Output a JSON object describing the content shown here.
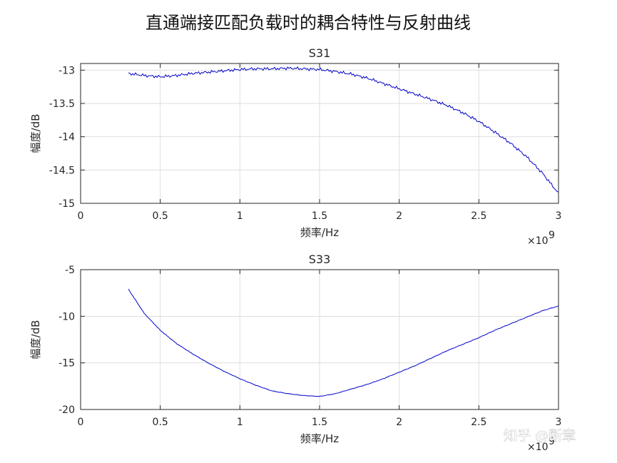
{
  "figure": {
    "suptitle": "直通端接匹配负载时的耦合特性与反射曲线",
    "watermark": "知乎 @断章"
  },
  "chart_data": [
    {
      "type": "line",
      "title": "S31",
      "xlabel": "频率/Hz",
      "ylabel": "幅度/dB",
      "x_exponent_label": "×10",
      "x_exponent": "9",
      "xlim": [
        0,
        3000000000.0
      ],
      "ylim": [
        -15,
        -12.9
      ],
      "x_ticks": [
        0,
        500000000.0,
        1000000000.0,
        1500000000.0,
        2000000000.0,
        2500000000.0,
        3000000000.0
      ],
      "x_tick_labels": [
        "0",
        "0.5",
        "1",
        "1.5",
        "2",
        "2.5",
        "3"
      ],
      "y_ticks": [
        -13,
        -13.5,
        -14,
        -14.5,
        -15
      ],
      "y_tick_labels": [
        "-13",
        "-13.5",
        "-14",
        "-14.5",
        "-15"
      ],
      "grid": true,
      "color": "#0000c8",
      "series": [
        {
          "x": [
            300000000.0,
            400000000.0,
            500000000.0,
            600000000.0,
            700000000.0,
            800000000.0,
            900000000.0,
            1000000000.0,
            1100000000.0,
            1200000000.0,
            1300000000.0,
            1400000000.0,
            1500000000.0,
            1600000000.0,
            1700000000.0,
            1800000000.0,
            1900000000.0,
            2000000000.0,
            2100000000.0,
            2200000000.0,
            2300000000.0,
            2400000000.0,
            2500000000.0,
            2600000000.0,
            2700000000.0,
            2800000000.0,
            2900000000.0,
            3000000000.0
          ],
          "y": [
            -13.05,
            -13.08,
            -13.1,
            -13.08,
            -13.05,
            -13.03,
            -13.01,
            -12.99,
            -12.98,
            -12.98,
            -12.97,
            -12.98,
            -12.99,
            -13.02,
            -13.06,
            -13.12,
            -13.2,
            -13.28,
            -13.36,
            -13.44,
            -13.53,
            -13.64,
            -13.77,
            -13.93,
            -14.1,
            -14.3,
            -14.55,
            -14.85
          ]
        }
      ]
    },
    {
      "type": "line",
      "title": "S33",
      "xlabel": "频率/Hz",
      "ylabel": "幅度/dB",
      "x_exponent_label": "×10",
      "x_exponent": "9",
      "xlim": [
        0,
        3000000000.0
      ],
      "ylim": [
        -20,
        -5
      ],
      "x_ticks": [
        0,
        500000000.0,
        1000000000.0,
        1500000000.0,
        2000000000.0,
        2500000000.0,
        3000000000.0
      ],
      "x_tick_labels": [
        "0",
        "0.5",
        "1",
        "1.5",
        "2",
        "2.5",
        "3"
      ],
      "y_ticks": [
        -5,
        -10,
        -15,
        -20
      ],
      "y_tick_labels": [
        "-5",
        "-10",
        "-15",
        "-20"
      ],
      "grid": true,
      "color": "#0000c8",
      "series": [
        {
          "x": [
            300000000.0,
            400000000.0,
            500000000.0,
            600000000.0,
            700000000.0,
            800000000.0,
            900000000.0,
            1000000000.0,
            1100000000.0,
            1200000000.0,
            1300000000.0,
            1400000000.0,
            1500000000.0,
            1600000000.0,
            1700000000.0,
            1800000000.0,
            1900000000.0,
            2000000000.0,
            2100000000.0,
            2200000000.0,
            2300000000.0,
            2400000000.0,
            2500000000.0,
            2600000000.0,
            2700000000.0,
            2800000000.0,
            2900000000.0,
            3000000000.0
          ],
          "y": [
            -7.1,
            -9.7,
            -11.5,
            -12.9,
            -14.0,
            -15.0,
            -15.9,
            -16.7,
            -17.4,
            -18.0,
            -18.3,
            -18.5,
            -18.6,
            -18.3,
            -17.8,
            -17.3,
            -16.7,
            -16.0,
            -15.3,
            -14.5,
            -13.7,
            -13.0,
            -12.3,
            -11.5,
            -10.8,
            -10.1,
            -9.4,
            -8.9
          ]
        }
      ]
    }
  ]
}
